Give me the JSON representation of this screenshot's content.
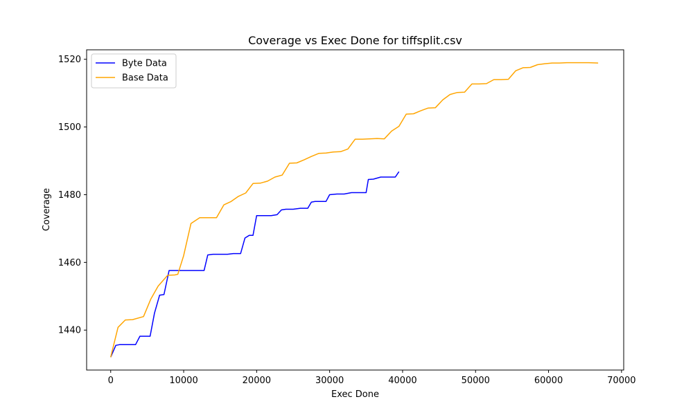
{
  "chart_data": {
    "type": "line",
    "title": "Coverage vs Exec Done for tiffsplit.csv",
    "xlabel": "Exec Done",
    "ylabel": "Coverage",
    "xlim": [
      -3300,
      70300
    ],
    "ylim": [
      1428.2,
      1522.8
    ],
    "xticks": [
      0,
      10000,
      20000,
      30000,
      40000,
      50000,
      60000,
      70000
    ],
    "yticks": [
      1440,
      1460,
      1480,
      1500,
      1520
    ],
    "grid": false,
    "legend_position": "top-left",
    "series": [
      {
        "name": "Byte Data",
        "color": "#0000ff",
        "x": [
          0,
          700,
          1200,
          2000,
          3400,
          4000,
          5400,
          6000,
          6700,
          7300,
          8000,
          9000,
          10000,
          11000,
          12000,
          12800,
          13300,
          14000,
          15000,
          16000,
          16800,
          17800,
          18400,
          19000,
          19500,
          20000,
          21000,
          22000,
          22800,
          23400,
          24000,
          25000,
          26000,
          27000,
          27500,
          28000,
          29000,
          29500,
          30000,
          31000,
          32000,
          33000,
          34000,
          35000,
          35300,
          36000,
          37000,
          38000,
          39000,
          39500
        ],
        "y": [
          1432,
          1435.5,
          1435.7,
          1435.7,
          1435.7,
          1438.2,
          1438.2,
          1445,
          1450.3,
          1450.5,
          1457.6,
          1457.6,
          1457.6,
          1457.6,
          1457.6,
          1457.6,
          1462.2,
          1462.4,
          1462.4,
          1462.4,
          1462.6,
          1462.6,
          1467.2,
          1468,
          1468,
          1473.8,
          1473.8,
          1473.8,
          1474.1,
          1475.5,
          1475.7,
          1475.7,
          1476,
          1476,
          1477.8,
          1478,
          1478,
          1478,
          1480,
          1480.2,
          1480.2,
          1480.6,
          1480.6,
          1480.6,
          1484.5,
          1484.6,
          1485.2,
          1485.2,
          1485.2,
          1486.8
        ]
      },
      {
        "name": "Base Data",
        "color": "#ffa500",
        "x": [
          0,
          1000,
          2000,
          3000,
          4500,
          5500,
          6500,
          7800,
          8800,
          9200,
          10000,
          11000,
          12200,
          13500,
          14500,
          15500,
          16500,
          17500,
          18500,
          19500,
          20500,
          21500,
          22500,
          23500,
          24500,
          25500,
          26500,
          27500,
          28500,
          29500,
          30500,
          31500,
          32500,
          33500,
          34500,
          35500,
          36500,
          37500,
          38500,
          39500,
          40500,
          41500,
          42500,
          43500,
          44500,
          45500,
          46500,
          47500,
          48500,
          49500,
          50500,
          51500,
          52500,
          53500,
          54500,
          55500,
          56500,
          57500,
          58500,
          59500,
          60500,
          61500,
          62500,
          63500,
          64500,
          65500,
          66800
        ],
        "y": [
          1432,
          1440.8,
          1443,
          1443.1,
          1444,
          1449.2,
          1453,
          1456.2,
          1456.3,
          1456.5,
          1462,
          1471.5,
          1473.2,
          1473.2,
          1473.2,
          1477,
          1478,
          1479.5,
          1480.5,
          1483.3,
          1483.4,
          1484,
          1485.2,
          1485.8,
          1489.3,
          1489.4,
          1490.3,
          1491.3,
          1492.2,
          1492.3,
          1492.6,
          1492.7,
          1493.5,
          1496.4,
          1496.4,
          1496.5,
          1496.6,
          1496.5,
          1498.8,
          1500.2,
          1503.8,
          1503.9,
          1504.8,
          1505.6,
          1505.7,
          1508,
          1509.6,
          1510.2,
          1510.3,
          1512.7,
          1512.7,
          1512.8,
          1514,
          1514,
          1514.1,
          1516.6,
          1517.5,
          1517.6,
          1518.4,
          1518.7,
          1518.9,
          1518.9,
          1519,
          1519,
          1519,
          1519,
          1518.9
        ]
      }
    ]
  }
}
